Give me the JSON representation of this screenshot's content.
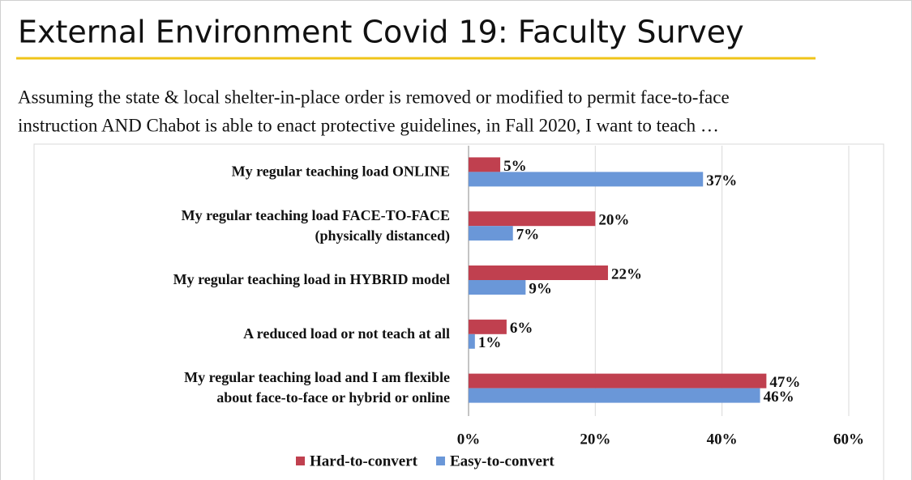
{
  "chart_data": {
    "type": "barh",
    "title": "External Environment Covid 19: Faculty Survey",
    "subtitle": [
      "Assuming the state & local shelter-in-place order is removed or modified to permit face-to-face",
      "instruction AND Chabot is able to enact protective guidelines, in Fall 2020, I want to teach …"
    ],
    "categories": [
      [
        "My regular teaching load ONLINE"
      ],
      [
        "My regular teaching load FACE-TO-FACE",
        "(physically distanced)"
      ],
      [
        "My regular teaching load in HYBRID model"
      ],
      [
        "A reduced load or not teach at all"
      ],
      [
        "My regular teaching load and I am flexible",
        "about face-to-face or hybrid or online"
      ]
    ],
    "series": [
      {
        "name": "Hard-to-convert",
        "color": "#c0404f",
        "values": [
          5,
          20,
          22,
          6,
          47
        ],
        "value_labels": [
          "5%",
          "20%",
          "22%",
          "6%",
          "47%"
        ]
      },
      {
        "name": "Easy-to-convert",
        "color": "#6a97d8",
        "values": [
          37,
          7,
          9,
          1,
          46
        ],
        "value_labels": [
          "37%",
          "7%",
          "9%",
          "1%",
          "46%"
        ]
      }
    ],
    "xlim": [
      0,
      60
    ],
    "xticks": [
      {
        "value": 0,
        "label": "0%"
      },
      {
        "value": 20,
        "label": "20%"
      },
      {
        "value": 40,
        "label": "40%"
      },
      {
        "value": 60,
        "label": "60%"
      }
    ],
    "grid": true
  }
}
